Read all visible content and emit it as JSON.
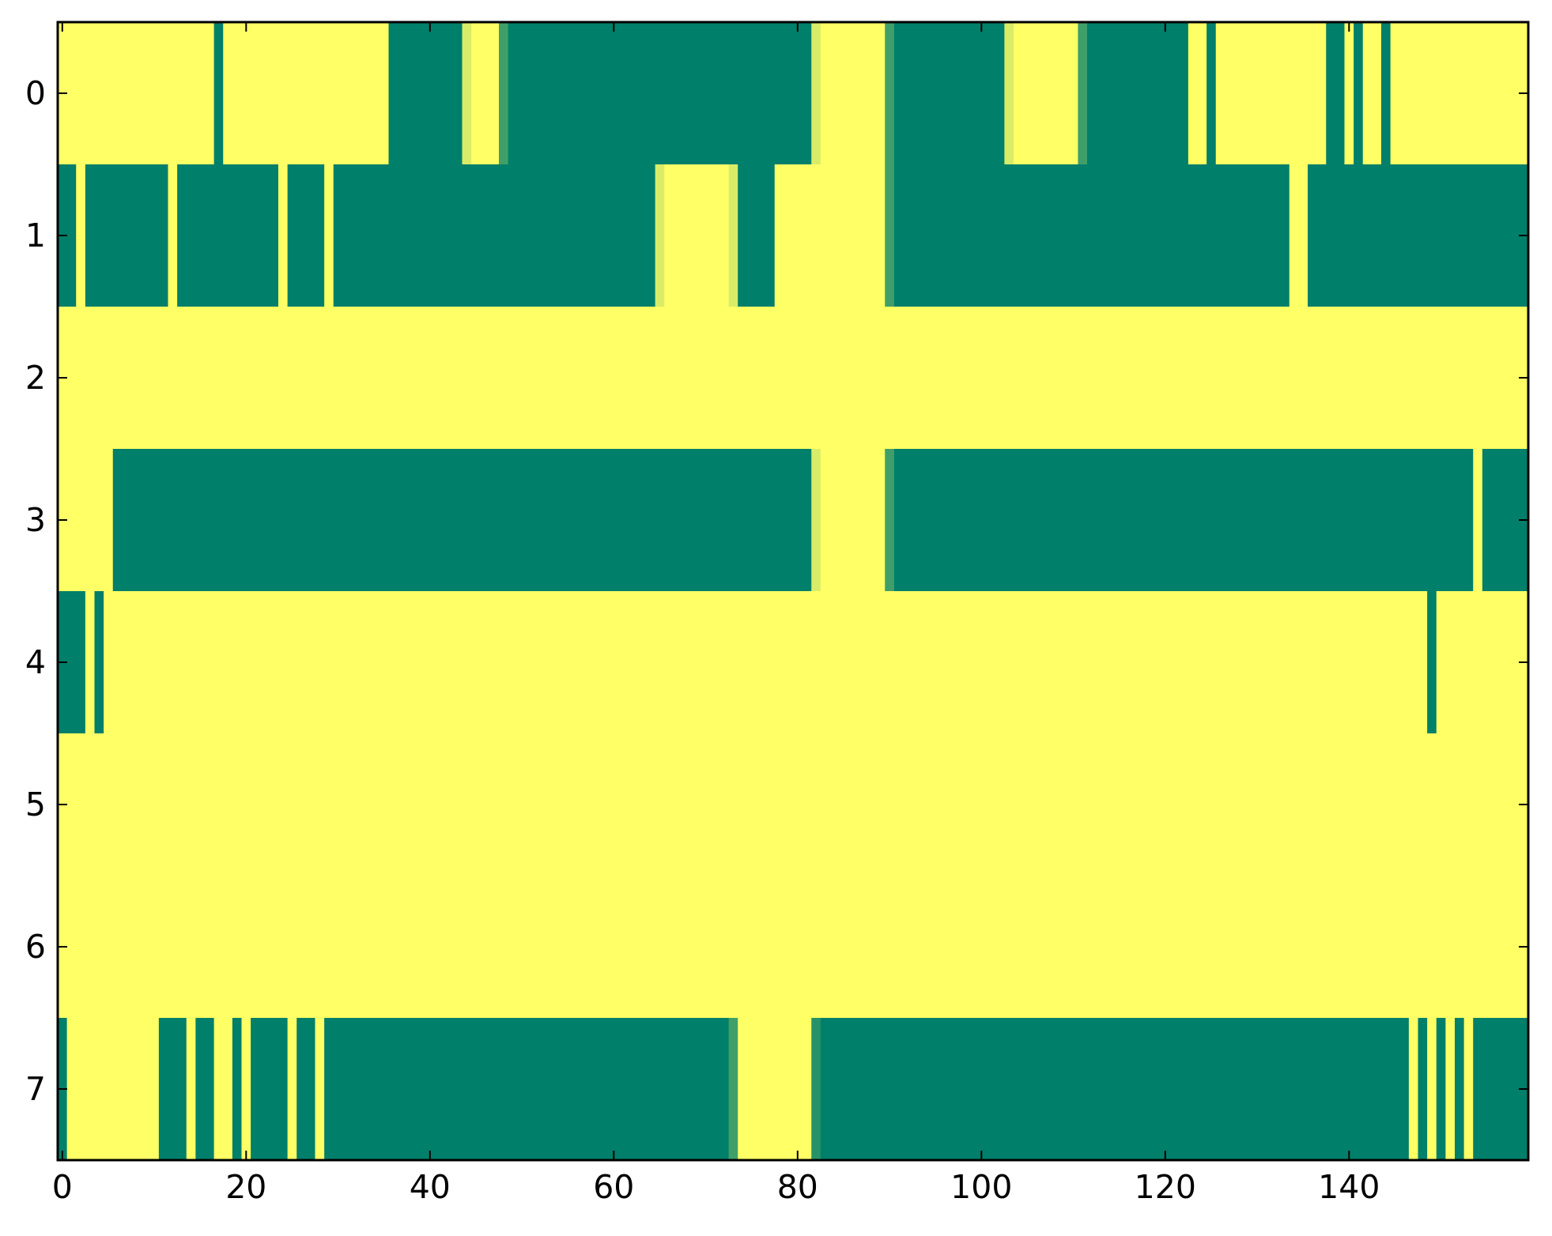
{
  "chart_data": {
    "type": "heatmap",
    "title": "",
    "xlabel": "",
    "ylabel": "",
    "xlim": [
      -0.5,
      159.5
    ],
    "ylim": [
      7.5,
      -0.5
    ],
    "x_ticks": [
      0,
      20,
      40,
      60,
      80,
      100,
      120,
      140
    ],
    "y_ticks": [
      0,
      1,
      2,
      3,
      4,
      5,
      6,
      7
    ],
    "colors": {
      "low": "#007f6a",
      "high": "#ffff66",
      "mid_dark": "#4fa45f",
      "mid_light": "#d6ea6a",
      "axis": "#000000"
    },
    "value_scale": "0 = green, 1 = yellow; intermediate values blend between them",
    "rows": [
      {
        "row": 0,
        "segments": [
          [
            0,
            16,
            1
          ],
          [
            17,
            17,
            0
          ],
          [
            18,
            35,
            1
          ],
          [
            36,
            43,
            0
          ],
          [
            44,
            44,
            0.85
          ],
          [
            45,
            47,
            1
          ],
          [
            48,
            48,
            0.25
          ],
          [
            49,
            81,
            0
          ],
          [
            82,
            82,
            0.85
          ],
          [
            83,
            89,
            1
          ],
          [
            90,
            90,
            0.25
          ],
          [
            91,
            102,
            0
          ],
          [
            103,
            103,
            0.85
          ],
          [
            104,
            110,
            1
          ],
          [
            111,
            111,
            0.25
          ],
          [
            112,
            122,
            0
          ],
          [
            123,
            124,
            1
          ],
          [
            125,
            125,
            0
          ],
          [
            126,
            137,
            1
          ],
          [
            138,
            139,
            0
          ],
          [
            140,
            140,
            1
          ],
          [
            141,
            141,
            0
          ],
          [
            142,
            143,
            1
          ],
          [
            144,
            144,
            0
          ],
          [
            145,
            159,
            1
          ]
        ]
      },
      {
        "row": 1,
        "segments": [
          [
            0,
            1,
            0
          ],
          [
            2,
            2,
            1
          ],
          [
            3,
            11,
            0
          ],
          [
            12,
            12,
            1
          ],
          [
            13,
            23,
            0
          ],
          [
            24,
            24,
            1
          ],
          [
            25,
            28,
            0
          ],
          [
            29,
            29,
            1
          ],
          [
            30,
            64,
            0
          ],
          [
            65,
            65,
            0.85
          ],
          [
            66,
            72,
            1
          ],
          [
            73,
            73,
            0.85
          ],
          [
            74,
            77,
            0
          ],
          [
            78,
            89,
            1
          ],
          [
            90,
            90,
            0.25
          ],
          [
            91,
            133,
            0
          ],
          [
            134,
            135,
            1
          ],
          [
            136,
            159,
            0
          ]
        ]
      },
      {
        "row": 2,
        "segments": [
          [
            0,
            159,
            1
          ]
        ]
      },
      {
        "row": 3,
        "segments": [
          [
            0,
            5,
            1
          ],
          [
            6,
            81,
            0
          ],
          [
            82,
            82,
            0.85
          ],
          [
            83,
            89,
            1
          ],
          [
            90,
            90,
            0.25
          ],
          [
            91,
            153,
            0
          ],
          [
            154,
            154,
            1
          ],
          [
            155,
            159,
            0
          ]
        ]
      },
      {
        "row": 4,
        "segments": [
          [
            0,
            2,
            0
          ],
          [
            3,
            3,
            1
          ],
          [
            4,
            4,
            0
          ],
          [
            5,
            148,
            1
          ],
          [
            149,
            149,
            0
          ],
          [
            150,
            159,
            1
          ]
        ]
      },
      {
        "row": 5,
        "segments": [
          [
            0,
            159,
            1
          ]
        ]
      },
      {
        "row": 6,
        "segments": [
          [
            0,
            159,
            1
          ]
        ]
      },
      {
        "row": 7,
        "segments": [
          [
            0,
            0,
            0
          ],
          [
            1,
            10,
            1
          ],
          [
            11,
            13,
            0
          ],
          [
            14,
            14,
            1
          ],
          [
            15,
            16,
            0
          ],
          [
            17,
            18,
            1
          ],
          [
            19,
            19,
            0
          ],
          [
            20,
            20,
            1
          ],
          [
            21,
            24,
            0
          ],
          [
            25,
            25,
            1
          ],
          [
            26,
            27,
            0
          ],
          [
            28,
            28,
            1
          ],
          [
            29,
            72,
            0
          ],
          [
            73,
            73,
            0.25
          ],
          [
            74,
            81,
            1
          ],
          [
            82,
            82,
            0.15
          ],
          [
            83,
            146,
            0
          ],
          [
            147,
            147,
            1
          ],
          [
            148,
            148,
            0
          ],
          [
            149,
            149,
            1
          ],
          [
            150,
            150,
            0
          ],
          [
            151,
            151,
            1
          ],
          [
            152,
            152,
            0
          ],
          [
            153,
            153,
            1
          ],
          [
            154,
            159,
            0
          ]
        ]
      }
    ]
  }
}
